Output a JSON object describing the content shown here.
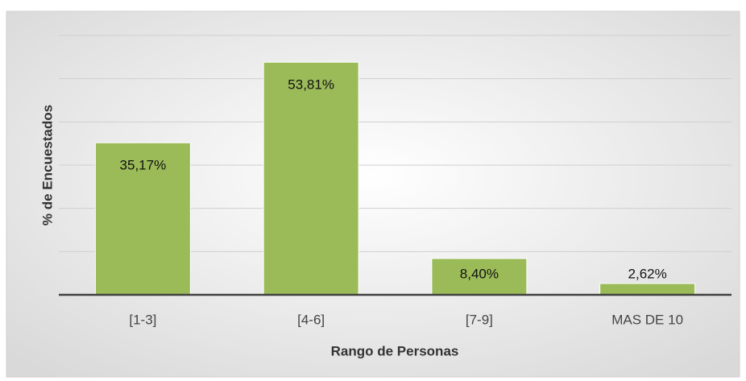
{
  "chart_data": {
    "type": "bar",
    "x_label": "Rango de Personas",
    "y_label": "% de Encuestados",
    "categories": [
      "[1-3]",
      "[4-6]",
      "[7-9]",
      "MAS DE 10"
    ],
    "values": [
      35.17,
      53.81,
      8.4,
      2.62
    ],
    "value_labels": [
      "35,17%",
      "53,81%",
      "8,40%",
      "2,62%"
    ],
    "color": "#9bbb59",
    "ylim": [
      0,
      60
    ],
    "yticks": [
      0,
      10,
      20,
      30,
      40,
      50,
      60
    ],
    "grid": true
  }
}
